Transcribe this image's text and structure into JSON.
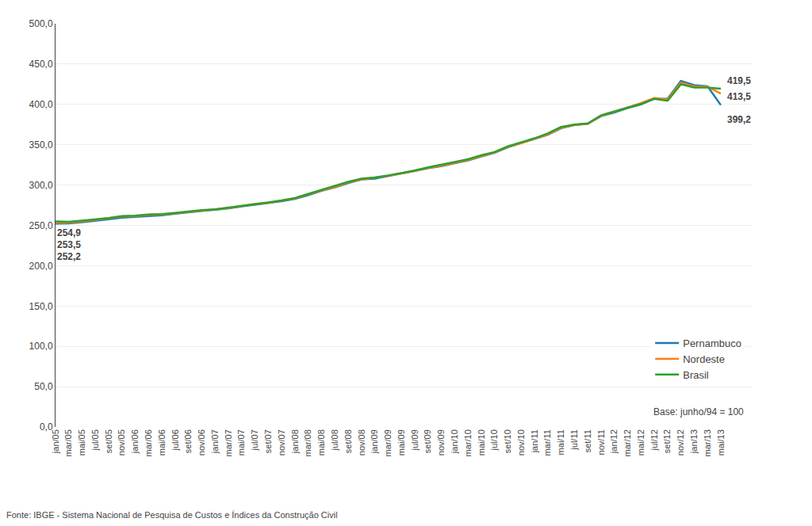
{
  "chart_data": {
    "type": "line",
    "categories": [
      "jan/05",
      "mar/05",
      "mai/05",
      "jul/05",
      "set/05",
      "nov/05",
      "jan/06",
      "mar/06",
      "mai/06",
      "jul/06",
      "set/06",
      "nov/06",
      "jan/07",
      "mar/07",
      "mai/07",
      "jul/07",
      "set/07",
      "nov/07",
      "jan/08",
      "mar/08",
      "mai/08",
      "jul/08",
      "set/08",
      "nov/08",
      "jan/09",
      "mar/09",
      "mai/09",
      "jul/09",
      "set/09",
      "nov/09",
      "jan/10",
      "mar/10",
      "mai/10",
      "jul/10",
      "set/10",
      "nov/10",
      "jan/11",
      "mar/11",
      "mai/11",
      "jul/11",
      "set/11",
      "nov/11",
      "jan/12",
      "mar/12",
      "mai/12",
      "jul/12",
      "set/12",
      "nov/12",
      "jan/13",
      "mar/13",
      "mai/13"
    ],
    "series": [
      {
        "name": "Pernambuco",
        "values": [
          252.2,
          252.5,
          254.0,
          255.5,
          257.5,
          259.5,
          260.5,
          262.0,
          262.5,
          264.5,
          266.5,
          268.0,
          269.5,
          271.0,
          273.5,
          275.5,
          277.5,
          280.0,
          283.0,
          287.5,
          293.0,
          297.0,
          302.5,
          307.0,
          308.0,
          311.0,
          314.0,
          317.5,
          321.0,
          323.5,
          327.0,
          330.5,
          335.5,
          340.0,
          347.0,
          352.0,
          357.0,
          362.5,
          370.5,
          374.5,
          376.0,
          385.5,
          390.0,
          395.5,
          400.0,
          407.0,
          407.0,
          429.0,
          424.0,
          422.5,
          399.2
        ]
      },
      {
        "name": "Nordeste",
        "values": [
          253.5,
          253.5,
          255.0,
          257.0,
          258.5,
          261.0,
          261.5,
          263.0,
          263.5,
          265.0,
          267.0,
          268.5,
          270.0,
          271.5,
          274.0,
          276.5,
          278.0,
          280.5,
          283.5,
          288.5,
          293.5,
          297.5,
          303.5,
          307.0,
          309.0,
          311.5,
          314.5,
          317.5,
          321.5,
          324.0,
          327.5,
          331.0,
          336.0,
          340.5,
          347.5,
          352.0,
          357.5,
          363.0,
          371.0,
          374.5,
          376.0,
          386.0,
          391.0,
          396.5,
          401.5,
          408.0,
          406.0,
          427.0,
          422.5,
          422.0,
          413.5
        ]
      },
      {
        "name": "Brasil",
        "values": [
          254.9,
          254.5,
          256.0,
          257.5,
          259.2,
          261.5,
          262.0,
          263.5,
          264.0,
          265.5,
          267.5,
          269.0,
          270.0,
          272.0,
          274.5,
          276.5,
          278.5,
          281.0,
          284.0,
          289.0,
          294.0,
          298.5,
          304.0,
          308.0,
          309.5,
          312.0,
          315.0,
          318.0,
          322.0,
          325.0,
          328.5,
          332.0,
          337.0,
          341.0,
          348.0,
          353.0,
          358.0,
          364.0,
          372.0,
          375.0,
          376.5,
          386.5,
          391.0,
          396.0,
          400.5,
          407.0,
          404.5,
          425.0,
          421.0,
          421.0,
          419.5
        ]
      }
    ],
    "ylim": [
      0,
      500
    ],
    "yticks": [
      {
        "value": 0,
        "label": "0,0"
      },
      {
        "value": 50,
        "label": "50,0"
      },
      {
        "value": 100,
        "label": "100,0"
      },
      {
        "value": 150,
        "label": "150,0"
      },
      {
        "value": 200,
        "label": "200,0"
      },
      {
        "value": 250,
        "label": "250,0"
      },
      {
        "value": 300,
        "label": "300,0"
      },
      {
        "value": 350,
        "label": "350,0"
      },
      {
        "value": 400,
        "label": "400,0"
      },
      {
        "value": 450,
        "label": "450,0"
      },
      {
        "value": 500,
        "label": "500,0"
      }
    ],
    "grid": true,
    "legend": "lower right",
    "annotations": [
      {
        "text": "254,9",
        "x": "jan/05",
        "y": 254.9
      },
      {
        "text": "253,5",
        "x": "jan/05",
        "y": 253.5
      },
      {
        "text": "252,2",
        "x": "jan/05",
        "y": 252.2
      },
      {
        "text": "419,5",
        "x": "mai/13",
        "y": 419.5
      },
      {
        "text": "413,5",
        "x": "mai/13",
        "y": 413.5
      },
      {
        "text": "399,2",
        "x": "mai/13",
        "y": 399.2
      },
      {
        "text": "Base: junho/94 = 100"
      }
    ],
    "footnote": "Fonte: IBGE - Sistema Nacional de Pesquisa de Custos e Índices da Construção Civil"
  }
}
